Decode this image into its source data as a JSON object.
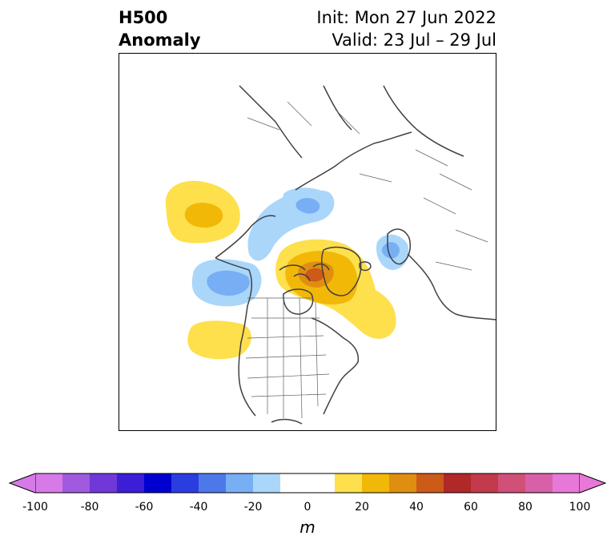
{
  "title": {
    "left_line1": "H500",
    "left_line2": "Anomaly",
    "right_line1": "Init: Mon 27 Jun 2022",
    "right_line2": "Valid: 23 Jul – 29 Jul"
  },
  "colorbar": {
    "unit": "m",
    "ticks": [
      "-100",
      "-80",
      "-60",
      "-40",
      "-20",
      "0",
      "20",
      "40",
      "60",
      "80",
      "100"
    ],
    "min": -100,
    "max": 100,
    "extend": "both",
    "colors": [
      "#d77ae8",
      "#a05ae0",
      "#7038d8",
      "#3b1ed6",
      "#0000d0",
      "#2a3ee0",
      "#4d78ea",
      "#78aef4",
      "#aad6fa",
      "#ffffff",
      "#ffffff",
      "#fde04c",
      "#f2b808",
      "#e08e10",
      "#cc5a18",
      "#b02828",
      "#c23a4c",
      "#d05078",
      "#d860a8",
      "#e878d8"
    ]
  },
  "map": {
    "projection": "north polar stereographic",
    "region": "North America / Arctic"
  }
}
